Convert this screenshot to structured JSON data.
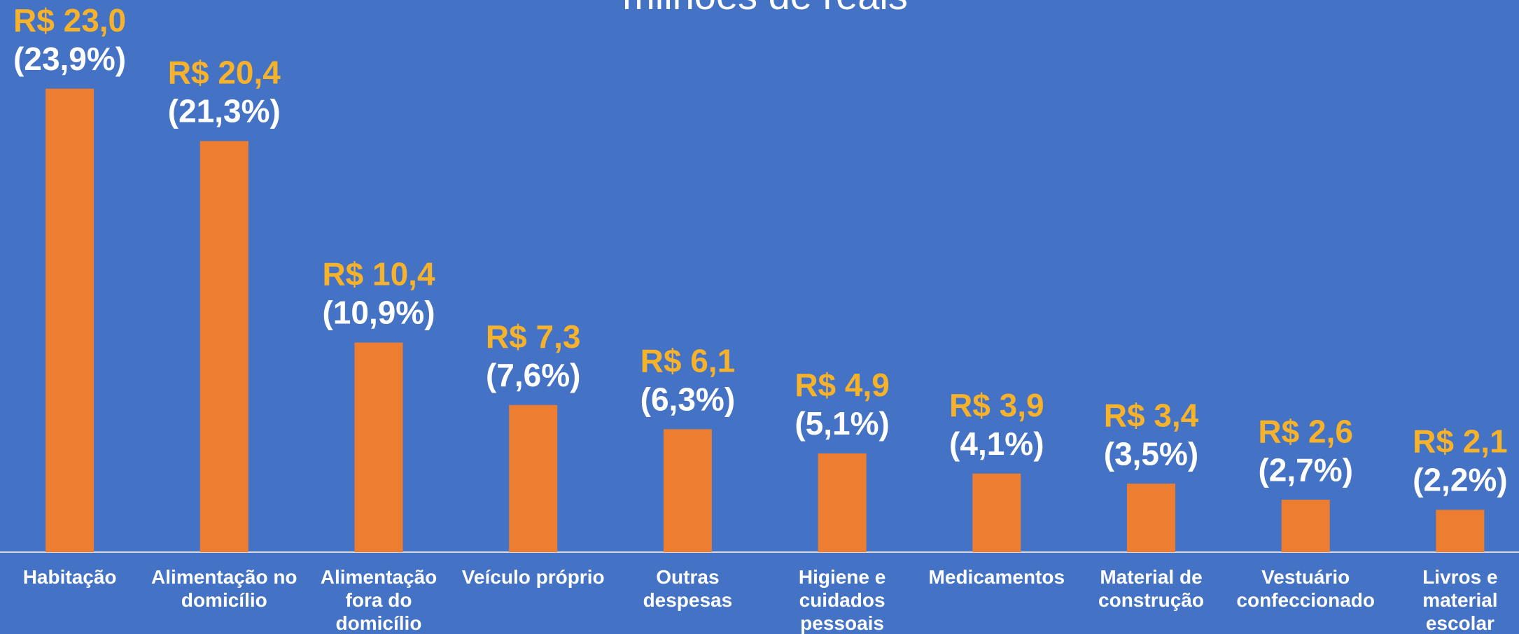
{
  "chart_data": {
    "type": "bar",
    "title": "milhões de reais",
    "categories": [
      "Habitação",
      "Alimentação no\ndomicílio",
      "Alimentação\nfora do\ndomicílio",
      "Veículo próprio",
      "Outras\ndespesas",
      "Higiene e\ncuidados\npessoais",
      "Medicamentos",
      "Material de\nconstrução",
      "Vestuário\nconfeccionado",
      "Livros e\nmaterial\nescolar"
    ],
    "values": [
      23.0,
      20.4,
      10.4,
      7.3,
      6.1,
      4.9,
      3.9,
      3.4,
      2.6,
      2.1
    ],
    "value_labels": [
      "R$ 23,0",
      "R$ 20,4",
      "R$ 10,4",
      "R$ 7,3",
      "R$ 6,1",
      "R$ 4,9",
      "R$ 3,9",
      "R$ 3,4",
      "R$ 2,6",
      "R$ 2,1"
    ],
    "share_labels": [
      "(23,9%)",
      "(21,3%)",
      "(10,9%)",
      "(7,6%)",
      "(6,3%)",
      "(5,1%)",
      "(4,1%)",
      "(3,5%)",
      "(2,7%)",
      "(2,2%)"
    ],
    "color": "#ed7d31",
    "label_color": "#f6b22a",
    "ylim": [
      0,
      27.4
    ]
  }
}
